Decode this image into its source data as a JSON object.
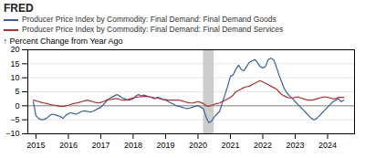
{
  "chart_data": {
    "type": "line",
    "title": "FRED",
    "ylabel": "Percent Change from Year Ago",
    "x": [
      2014.917,
      2015.0,
      2015.083,
      2015.167,
      2015.25,
      2015.333,
      2015.417,
      2015.5,
      2015.583,
      2015.667,
      2015.75,
      2015.833,
      2015.917,
      2016.0,
      2016.083,
      2016.167,
      2016.25,
      2016.333,
      2016.417,
      2016.5,
      2016.583,
      2016.667,
      2016.75,
      2016.833,
      2016.917,
      2017.0,
      2017.083,
      2017.167,
      2017.25,
      2017.333,
      2017.417,
      2017.5,
      2017.583,
      2017.667,
      2017.75,
      2017.833,
      2017.917,
      2018.0,
      2018.083,
      2018.167,
      2018.25,
      2018.333,
      2018.417,
      2018.5,
      2018.583,
      2018.667,
      2018.75,
      2018.833,
      2018.917,
      2019.0,
      2019.083,
      2019.167,
      2019.25,
      2019.333,
      2019.417,
      2019.5,
      2019.583,
      2019.667,
      2019.75,
      2019.833,
      2019.917,
      2020.0,
      2020.083,
      2020.167,
      2020.25,
      2020.333,
      2020.417,
      2020.5,
      2020.583,
      2020.667,
      2020.75,
      2020.833,
      2020.917,
      2021.0,
      2021.083,
      2021.167,
      2021.25,
      2021.333,
      2021.417,
      2021.5,
      2021.583,
      2021.667,
      2021.75,
      2021.833,
      2021.917,
      2022.0,
      2022.083,
      2022.167,
      2022.25,
      2022.333,
      2022.417,
      2022.5,
      2022.583,
      2022.667,
      2022.75,
      2022.833,
      2022.917,
      2023.0,
      2023.083,
      2023.167,
      2023.25,
      2023.333,
      2023.417,
      2023.5,
      2023.583,
      2023.667,
      2023.75,
      2023.833,
      2023.917,
      2024.0,
      2024.083,
      2024.167,
      2024.25,
      2024.333,
      2024.417,
      2024.5
    ],
    "series": [
      {
        "name": "Producer Price Index by Commodity: Final Demand: Final Demand Goods",
        "color": "#3a5fa0",
        "values": [
          1.5,
          -3.5,
          -4.5,
          -5.0,
          -4.8,
          -4.5,
          -3.5,
          -3.0,
          -3.2,
          -3.5,
          -3.8,
          -4.5,
          -3.5,
          -2.8,
          -2.5,
          -2.8,
          -3.0,
          -2.5,
          -2.0,
          -1.8,
          -2.0,
          -2.2,
          -2.0,
          -1.5,
          -1.0,
          -0.5,
          0.5,
          1.5,
          2.5,
          3.0,
          3.5,
          4.0,
          3.5,
          2.8,
          2.5,
          2.0,
          2.2,
          2.5,
          3.5,
          4.0,
          3.5,
          3.8,
          3.5,
          3.2,
          3.0,
          2.5,
          3.0,
          2.8,
          2.2,
          2.0,
          1.5,
          1.0,
          0.5,
          0.0,
          -0.2,
          -0.5,
          -0.8,
          -1.0,
          -0.8,
          -0.5,
          -0.2,
          0.0,
          -0.5,
          -1.0,
          -4.0,
          -6.0,
          -5.5,
          -4.0,
          -3.0,
          -2.0,
          1.0,
          4.0,
          7.0,
          10.5,
          11.0,
          13.0,
          14.5,
          13.0,
          12.5,
          14.0,
          15.5,
          16.0,
          16.5,
          15.5,
          14.0,
          13.5,
          14.0,
          16.5,
          17.0,
          16.5,
          14.0,
          11.0,
          8.5,
          6.0,
          4.5,
          3.5,
          2.5,
          1.5,
          0.5,
          -0.5,
          -1.5,
          -2.5,
          -3.5,
          -4.5,
          -5.0,
          -4.5,
          -3.5,
          -2.5,
          -1.5,
          -0.5,
          0.5,
          1.5,
          2.0,
          2.5,
          1.5,
          2.0
        ]
      },
      {
        "name": "Producer Price Index by Commodity: Final Demand: Final Demand Services",
        "color": "#b03030",
        "values": [
          2.0,
          1.8,
          1.5,
          1.2,
          1.0,
          0.8,
          0.5,
          0.3,
          0.2,
          0.0,
          -0.2,
          -0.3,
          0.0,
          0.2,
          0.5,
          0.8,
          1.0,
          1.2,
          1.5,
          1.8,
          2.0,
          1.8,
          1.5,
          1.2,
          1.0,
          1.2,
          1.5,
          2.0,
          2.2,
          2.3,
          2.5,
          2.5,
          2.3,
          2.0,
          2.0,
          2.2,
          2.5,
          2.8,
          3.0,
          3.2,
          3.2,
          3.3,
          3.3,
          3.2,
          3.0,
          2.8,
          2.8,
          2.5,
          2.3,
          2.2,
          2.0,
          2.0,
          2.0,
          2.0,
          2.0,
          1.8,
          1.5,
          1.2,
          1.0,
          1.0,
          1.2,
          1.5,
          1.2,
          0.8,
          0.0,
          -0.2,
          0.2,
          0.5,
          0.8,
          1.0,
          1.5,
          2.0,
          2.5,
          3.0,
          3.8,
          5.0,
          5.5,
          6.0,
          6.5,
          6.8,
          7.0,
          7.5,
          8.0,
          8.5,
          9.0,
          8.5,
          8.0,
          7.5,
          7.0,
          6.5,
          6.0,
          5.0,
          4.0,
          3.5,
          3.0,
          2.8,
          2.8,
          3.0,
          3.2,
          2.8,
          2.5,
          2.2,
          2.0,
          2.0,
          2.2,
          2.5,
          2.8,
          3.0,
          3.2,
          3.0,
          2.8,
          2.5,
          2.5,
          3.0,
          3.0,
          3.0
        ]
      }
    ],
    "xlim": [
      2014.75,
      2024.83
    ],
    "xticks": [
      2015,
      2016,
      2017,
      2018,
      2019,
      2020,
      2021,
      2022,
      2023,
      2024
    ],
    "ylim": [
      -10,
      20
    ],
    "yticks": [
      -10,
      -5,
      0,
      5,
      10,
      15,
      20
    ],
    "shaded_x": [
      2020.17,
      2020.5
    ],
    "hline": 0,
    "grid": "y",
    "legend": "top"
  }
}
